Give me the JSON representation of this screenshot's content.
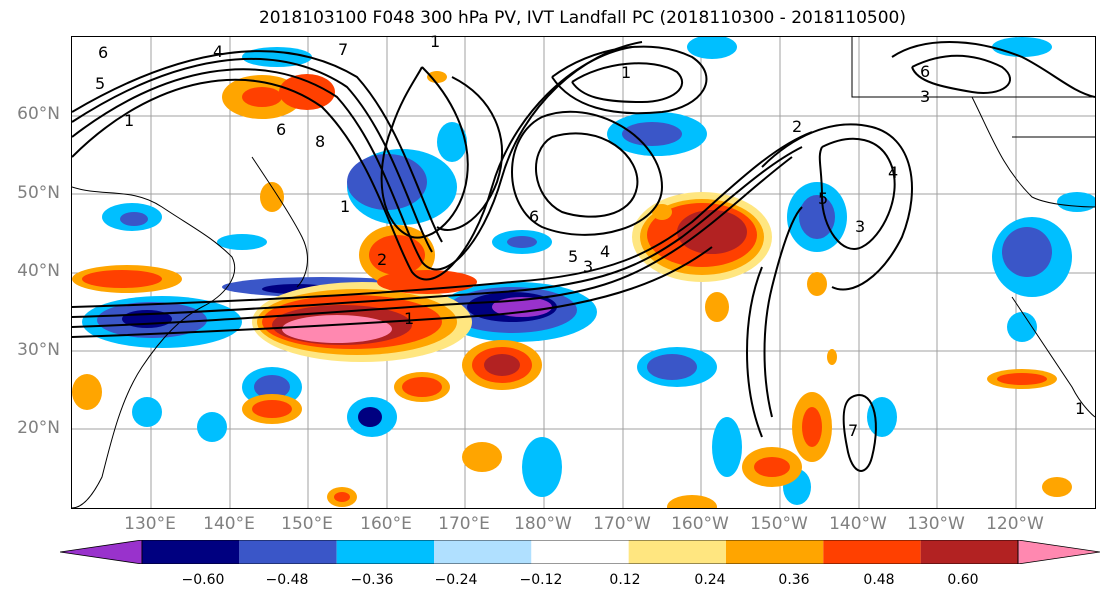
{
  "title": "2018103100 F048 300 hPa PV, IVT Landfall PC (2018110300 - 2018110500)",
  "lat_labels": [
    "60°N",
    "50°N",
    "40°N",
    "30°N",
    "20°N"
  ],
  "lon_labels": [
    "130°E",
    "140°E",
    "150°E",
    "160°E",
    "170°E",
    "180°W",
    "170°W",
    "160°W",
    "150°W",
    "140°W",
    "130°W",
    "120°W"
  ],
  "colorbar": {
    "ticks": [
      "−0.60",
      "−0.48",
      "−0.36",
      "−0.24",
      "−0.12",
      "0.12",
      "0.24",
      "0.36",
      "0.48",
      "0.60"
    ],
    "colors": [
      "#9932cc",
      "#000080",
      "#3a56c8",
      "#00bfff",
      "#b0e0ff",
      "#ffffff",
      "#ffe680",
      "#ffa500",
      "#ff4000",
      "#b22222",
      "#ff88b0"
    ]
  },
  "contour_labels": [
    "6",
    "4",
    "5",
    "1",
    "6",
    "8",
    "7",
    "1",
    "2",
    "5",
    "4",
    "3",
    "6",
    "1",
    "2",
    "4",
    "5",
    "3",
    "6",
    "3",
    "1",
    "7",
    "1",
    "1"
  ]
}
